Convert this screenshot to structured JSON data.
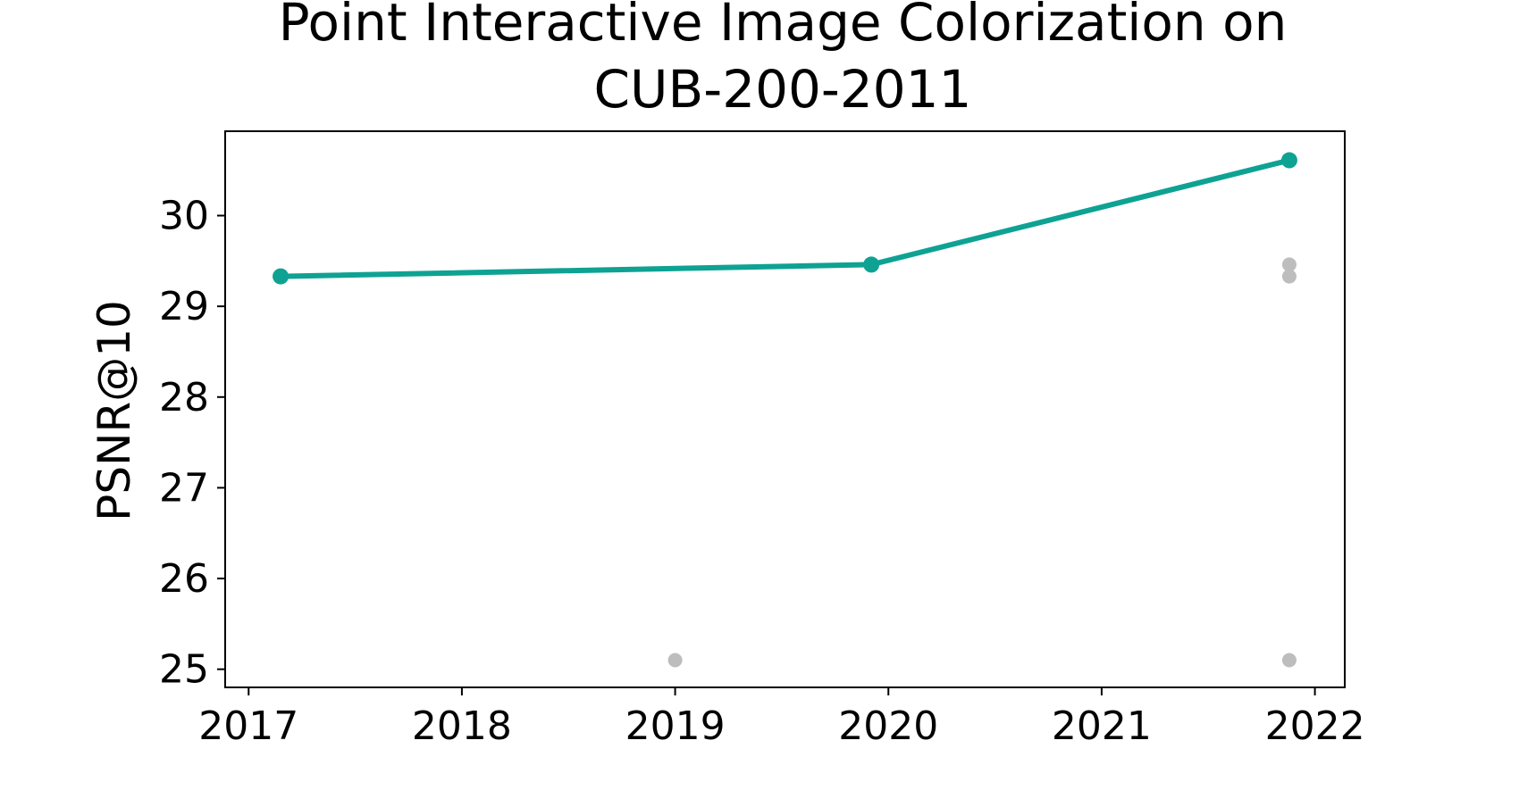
{
  "chart_data": {
    "type": "line",
    "title": "Point Interactive Image Colorization on CUB-200-2011",
    "title_lines": [
      "Point Interactive Image Colorization on",
      "CUB-200-2011"
    ],
    "xlabel": "",
    "ylabel": "PSNR@10",
    "xlim": [
      2016.89,
      2022.14
    ],
    "ylim": [
      24.8,
      30.93
    ],
    "x_ticks": [
      "2017",
      "2018",
      "2019",
      "2020",
      "2021",
      "2022"
    ],
    "y_ticks": [
      "25",
      "26",
      "27",
      "28",
      "29",
      "30"
    ],
    "grid": false,
    "legend": "none",
    "series": [
      {
        "color": "#0ea293",
        "style": "line-with-markers",
        "points": [
          {
            "x": 2017.15,
            "y": 29.33
          },
          {
            "x": 2019.92,
            "y": 29.46
          },
          {
            "x": 2021.88,
            "y": 30.61
          }
        ]
      },
      {
        "color": "#bdbdbd",
        "style": "markers-only",
        "points": [
          {
            "x": 2019.0,
            "y": 25.1
          },
          {
            "x": 2021.88,
            "y": 29.46
          },
          {
            "x": 2021.88,
            "y": 29.33
          },
          {
            "x": 2021.88,
            "y": 25.1
          }
        ]
      }
    ]
  }
}
